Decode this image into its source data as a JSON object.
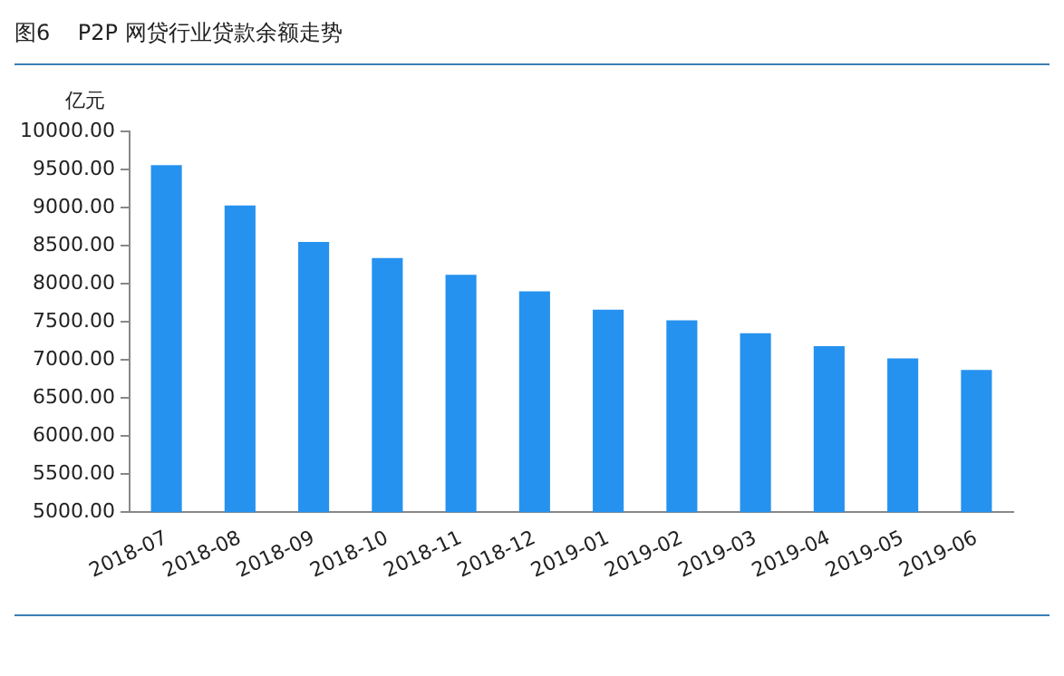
{
  "chart_data": {
    "type": "bar",
    "title": "图6    P2P 网贷行业贷款余额走势",
    "ylabel": "亿元",
    "categories": [
      "2018-07",
      "2018-08",
      "2018-09",
      "2018-10",
      "2018-11",
      "2018-12",
      "2019-01",
      "2019-02",
      "2019-03",
      "2019-04",
      "2019-05",
      "2019-06"
    ],
    "values": [
      9560,
      9030,
      8550,
      8340,
      8120,
      7900,
      7660,
      7520,
      7350,
      7180,
      7020,
      6870
    ],
    "color": "#2692ef",
    "ylim": [
      5000,
      10000
    ],
    "yticks": [
      {
        "value": 5000,
        "label": "5000.00"
      },
      {
        "value": 5500,
        "label": "5500.00"
      },
      {
        "value": 6000,
        "label": "6000.00"
      },
      {
        "value": 6500,
        "label": "6500.00"
      },
      {
        "value": 7000,
        "label": "7000.00"
      },
      {
        "value": 7500,
        "label": "7500.00"
      },
      {
        "value": 8000,
        "label": "8000.00"
      },
      {
        "value": 8500,
        "label": "8500.00"
      },
      {
        "value": 9000,
        "label": "9000.00"
      },
      {
        "value": 9500,
        "label": "9500.00"
      },
      {
        "value": 10000,
        "label": "10000.00"
      }
    ],
    "grid": false,
    "legend": false
  }
}
